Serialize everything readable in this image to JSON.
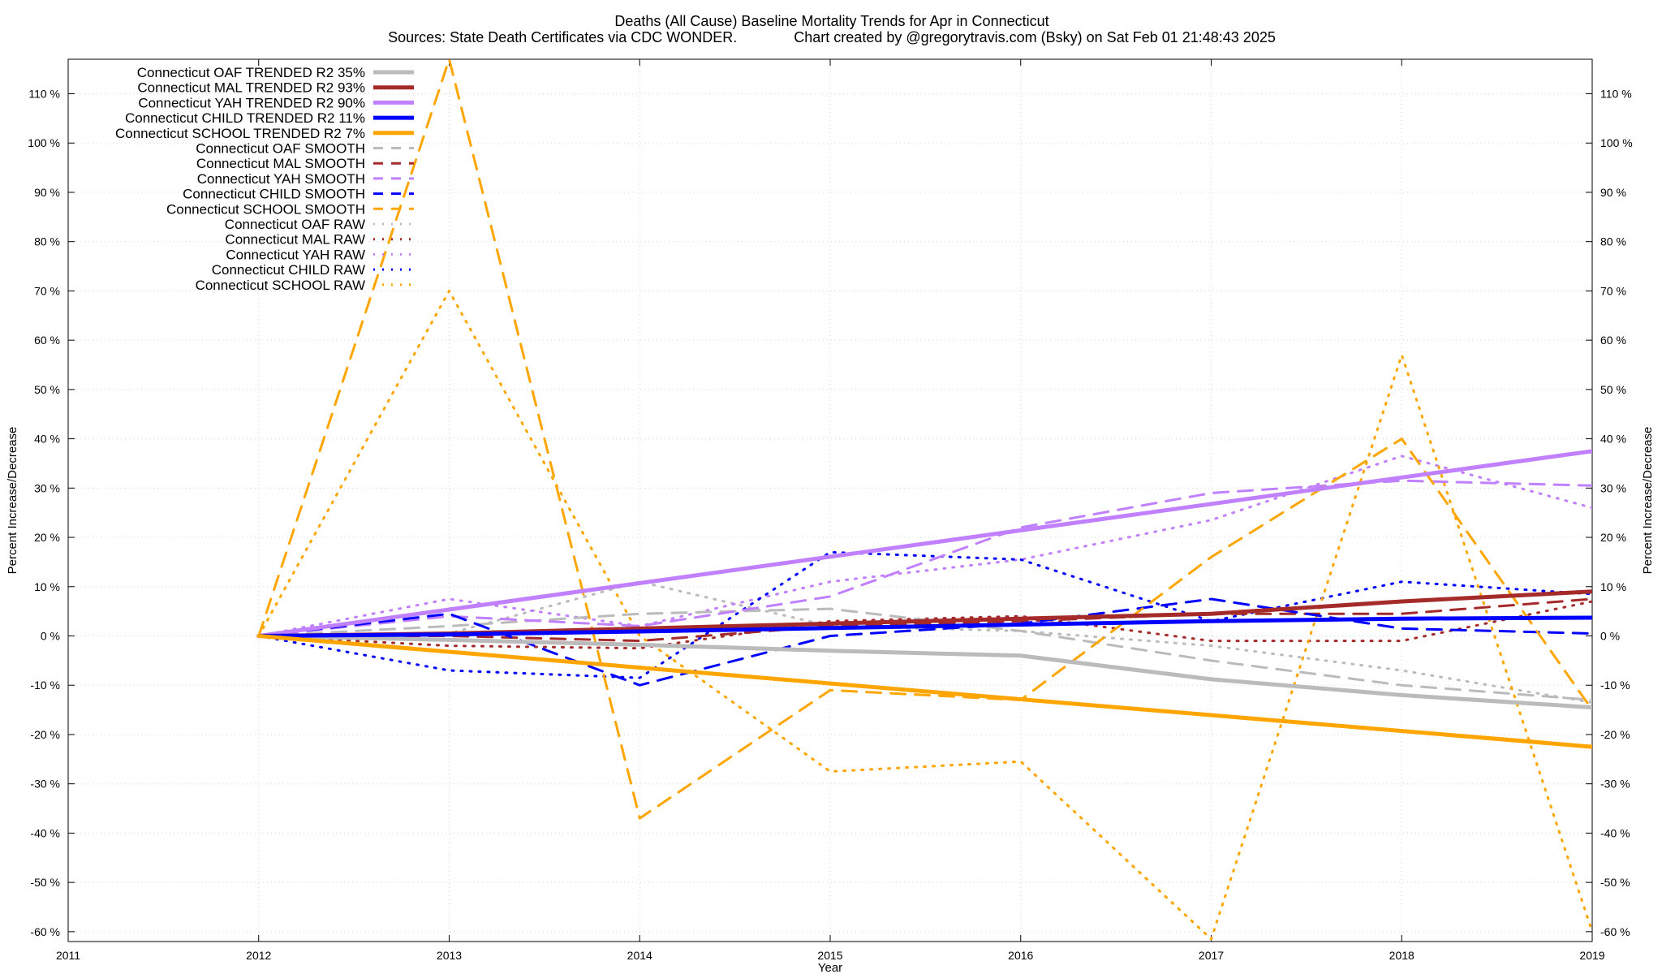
{
  "chart_data": {
    "type": "line",
    "title": "Deaths (All Cause)  Baseline Mortality Trends for Apr in Connecticut",
    "subtitle": "Sources: State Death Certificates via CDC WONDER.              Chart created by @gregorytravis.com (Bsky) on Sat Feb 01 21:48:43 2025",
    "xlabel": "Year",
    "ylabel": "Percent Increase/Decrease",
    "y2label": "Percent Increase/Decrease",
    "xlim": [
      2011,
      2019
    ],
    "ylim": [
      -62,
      117
    ],
    "x_ticks": [
      "2011",
      "2012",
      "2013",
      "2014",
      "2015",
      "2016",
      "2017",
      "2018",
      "2019"
    ],
    "y_ticks": [
      {
        "value": 110,
        "label": "110 %"
      },
      {
        "value": 100,
        "label": "100 %"
      },
      {
        "value": 90,
        "label": "90 %"
      },
      {
        "value": 80,
        "label": "80 %"
      },
      {
        "value": 70,
        "label": "70 %"
      },
      {
        "value": 60,
        "label": "60 %"
      },
      {
        "value": 50,
        "label": "50 %"
      },
      {
        "value": 40,
        "label": "40 %"
      },
      {
        "value": 30,
        "label": "30 %"
      },
      {
        "value": 20,
        "label": "20 %"
      },
      {
        "value": 10,
        "label": "10 %"
      },
      {
        "value": 0,
        "label": "0 %"
      },
      {
        "value": -10,
        "label": "-10 %"
      },
      {
        "value": -20,
        "label": "-20 %"
      },
      {
        "value": -30,
        "label": "-30 %"
      },
      {
        "value": -40,
        "label": "-40 %"
      },
      {
        "value": -50,
        "label": "-50 %"
      },
      {
        "value": -60,
        "label": "-60 %"
      }
    ],
    "grid": true,
    "legend_position": "top-left",
    "series": [
      {
        "name": "Connecticut OAF TRENDED R2  35%",
        "color": "#bbbbbb",
        "style": "solid",
        "x": [
          2012,
          2013,
          2014,
          2015,
          2016,
          2017,
          2018,
          2019
        ],
        "y": [
          0,
          -0.8,
          -1.8,
          -3,
          -4,
          -8.8,
          -12,
          -14.5
        ]
      },
      {
        "name": "Connecticut MAL TRENDED R2  93%",
        "color": "#a52a2a",
        "style": "solid",
        "x": [
          2012,
          2013,
          2014,
          2015,
          2016,
          2017,
          2018,
          2019
        ],
        "y": [
          0,
          0.5,
          1.5,
          2.5,
          3.5,
          4.5,
          7,
          9
        ]
      },
      {
        "name": "Connecticut YAH TRENDED R2  90%",
        "color": "#c080ff",
        "style": "solid",
        "x": [
          2012,
          2019
        ],
        "y": [
          0,
          37.5
        ]
      },
      {
        "name": "Connecticut CHILD TRENDED R2  11%",
        "color": "#0000ff",
        "style": "solid",
        "x": [
          2012,
          2013,
          2014,
          2015,
          2016,
          2017,
          2018,
          2019
        ],
        "y": [
          0,
          0.3,
          0.9,
          1.6,
          2.3,
          3.0,
          3.5,
          3.7
        ]
      },
      {
        "name": "Connecticut SCHOOL TRENDED R2   7%",
        "color": "#ffa500",
        "style": "solid",
        "x": [
          2012,
          2019
        ],
        "y": [
          0,
          -22.5
        ]
      },
      {
        "name": "Connecticut OAF SMOOTH",
        "color": "#bbbbbb",
        "style": "dash",
        "x": [
          2012,
          2013,
          2014,
          2015,
          2016,
          2017,
          2018,
          2019
        ],
        "y": [
          0,
          2,
          4.5,
          5.5,
          1,
          -5,
          -10,
          -13
        ]
      },
      {
        "name": "Connecticut MAL SMOOTH",
        "color": "#a52a2a",
        "style": "dash",
        "x": [
          2012,
          2013,
          2014,
          2015,
          2016,
          2017,
          2018,
          2019
        ],
        "y": [
          0,
          0,
          -1,
          2,
          3,
          4.5,
          4.5,
          7.5
        ]
      },
      {
        "name": "Connecticut YAH SMOOTH",
        "color": "#c080ff",
        "style": "dash",
        "x": [
          2012,
          2013,
          2014,
          2015,
          2016,
          2017,
          2018,
          2019
        ],
        "y": [
          0,
          4,
          2,
          8,
          22,
          29,
          31.5,
          30.5
        ]
      },
      {
        "name": "Connecticut CHILD SMOOTH",
        "color": "#0000ff",
        "style": "dash",
        "x": [
          2012,
          2013,
          2014,
          2015,
          2016,
          2017,
          2018,
          2019
        ],
        "y": [
          0,
          4.5,
          -10,
          0,
          2.5,
          7.5,
          1.5,
          0.5
        ]
      },
      {
        "name": "Connecticut SCHOOL SMOOTH",
        "color": "#ffa500",
        "style": "dash",
        "x": [
          2012,
          2013,
          2014,
          2015,
          2016,
          2017,
          2018,
          2019
        ],
        "y": [
          0,
          117,
          -37,
          -11,
          -13,
          16,
          40,
          -15
        ]
      },
      {
        "name": "Connecticut OAF RAW",
        "color": "#bbbbbb",
        "style": "dot",
        "x": [
          2012,
          2013,
          2014,
          2015,
          2016,
          2017,
          2018,
          2019
        ],
        "y": [
          0,
          0.5,
          11,
          2,
          1,
          -2,
          -7,
          -13.5
        ]
      },
      {
        "name": "Connecticut MAL RAW",
        "color": "#a52a2a",
        "style": "dot",
        "x": [
          2012,
          2013,
          2014,
          2015,
          2016,
          2017,
          2018,
          2019
        ],
        "y": [
          0,
          -2,
          -2.5,
          3,
          4,
          -1,
          -1,
          7
        ]
      },
      {
        "name": "Connecticut YAH RAW",
        "color": "#c080ff",
        "style": "dot",
        "x": [
          2012,
          2013,
          2014,
          2015,
          2016,
          2017,
          2018,
          2019
        ],
        "y": [
          0,
          7.5,
          2,
          11,
          15.5,
          23.5,
          36.5,
          26
        ]
      },
      {
        "name": "Connecticut CHILD RAW",
        "color": "#0000ff",
        "style": "dot",
        "x": [
          2012,
          2013,
          2014,
          2015,
          2016,
          2017,
          2018,
          2019
        ],
        "y": [
          0,
          -7,
          -8.5,
          17,
          15.5,
          3,
          11,
          8.5
        ]
      },
      {
        "name": "Connecticut SCHOOL RAW",
        "color": "#ffa500",
        "style": "dot",
        "x": [
          2012,
          2013,
          2014,
          2015,
          2016,
          2017,
          2018,
          2019
        ],
        "y": [
          0,
          70,
          0,
          -27.5,
          -25.5,
          -61.5,
          57,
          -60
        ]
      }
    ]
  }
}
